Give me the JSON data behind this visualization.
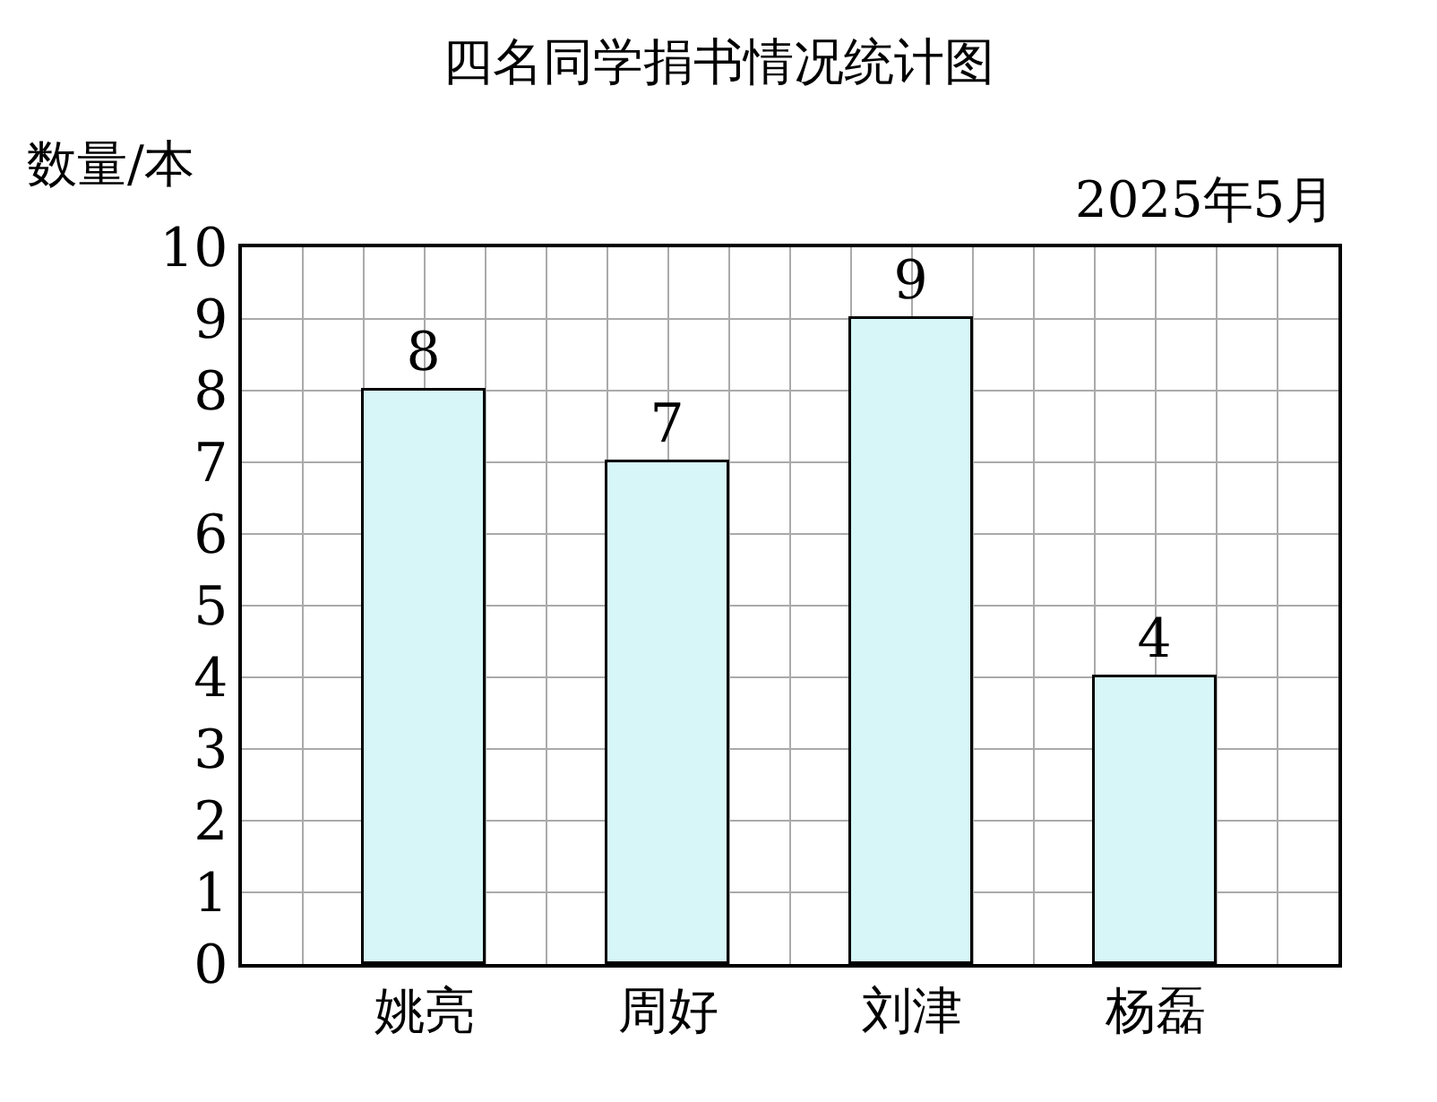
{
  "chart_data": {
    "type": "bar",
    "title": "四名同学捐书情况统计图",
    "ylabel": "数量/本",
    "annotations": [
      "2025年5月"
    ],
    "categories": [
      "姚亮",
      "周好",
      "刘津",
      "杨磊"
    ],
    "values": [
      8,
      7,
      9,
      4
    ],
    "color": "#d6f6f8",
    "ylim": [
      0,
      10
    ],
    "yticks": [
      0,
      1,
      2,
      3,
      4,
      5,
      6,
      7,
      8,
      9,
      10
    ],
    "grid": true,
    "data_labels": true
  }
}
